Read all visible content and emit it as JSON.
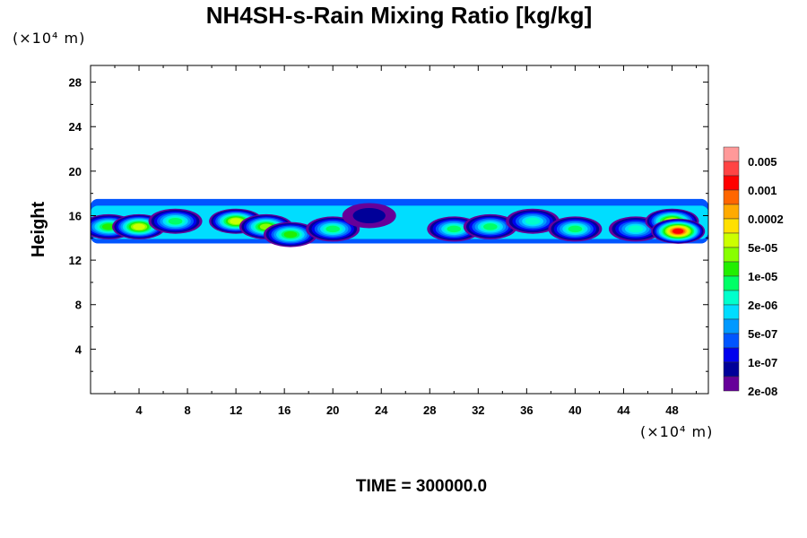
{
  "chart_data": {
    "type": "heatmap",
    "title": "NH4SH-s-Rain Mixing Ratio [kg/kg]",
    "ylabel": "Height",
    "xlabel": "",
    "x_unit": "(×10⁴ m)",
    "y_unit": "(×10⁴ m)",
    "xlim": [
      0,
      51
    ],
    "ylim": [
      0,
      29.5
    ],
    "x_ticks": [
      4,
      8,
      12,
      16,
      20,
      24,
      28,
      32,
      36,
      40,
      44,
      48
    ],
    "y_ticks": [
      4,
      8,
      12,
      16,
      20,
      24,
      28
    ],
    "colorbar": {
      "labels": [
        "0.005",
        "0.001",
        "0.0002",
        "5e-05",
        "1e-05",
        "2e-06",
        "5e-07",
        "1e-07",
        "2e-08"
      ],
      "colors": [
        "#ff9999",
        "#ff4444",
        "#ff0000",
        "#ff6600",
        "#ffaa00",
        "#ffe000",
        "#ccff00",
        "#88ff00",
        "#22ee00",
        "#00ff66",
        "#00ffcc",
        "#00ddff",
        "#0099ff",
        "#0055ff",
        "#0000ee",
        "#000099",
        "#660099"
      ]
    },
    "layer": {
      "base_height": 13.5,
      "top_height": 17.5,
      "cells": [
        {
          "x": 1.5,
          "y": 15.0,
          "level": 8
        },
        {
          "x": 4.0,
          "y": 15.0,
          "level": 10
        },
        {
          "x": 7.0,
          "y": 15.5,
          "level": 7
        },
        {
          "x": 12.0,
          "y": 15.5,
          "level": 10
        },
        {
          "x": 14.5,
          "y": 15.0,
          "level": 9
        },
        {
          "x": 16.5,
          "y": 14.3,
          "level": 8
        },
        {
          "x": 20.0,
          "y": 14.8,
          "level": 7
        },
        {
          "x": 23.0,
          "y": 16.0,
          "level": 1
        },
        {
          "x": 30.0,
          "y": 14.8,
          "level": 7
        },
        {
          "x": 33.0,
          "y": 15.0,
          "level": 7
        },
        {
          "x": 36.5,
          "y": 15.5,
          "level": 6
        },
        {
          "x": 40.0,
          "y": 14.8,
          "level": 7
        },
        {
          "x": 45.0,
          "y": 14.8,
          "level": 6
        },
        {
          "x": 48.0,
          "y": 15.5,
          "level": 10
        },
        {
          "x": 48.5,
          "y": 14.6,
          "level": 14
        }
      ]
    }
  },
  "footer": {
    "time_label": "TIME = 300000.0"
  }
}
